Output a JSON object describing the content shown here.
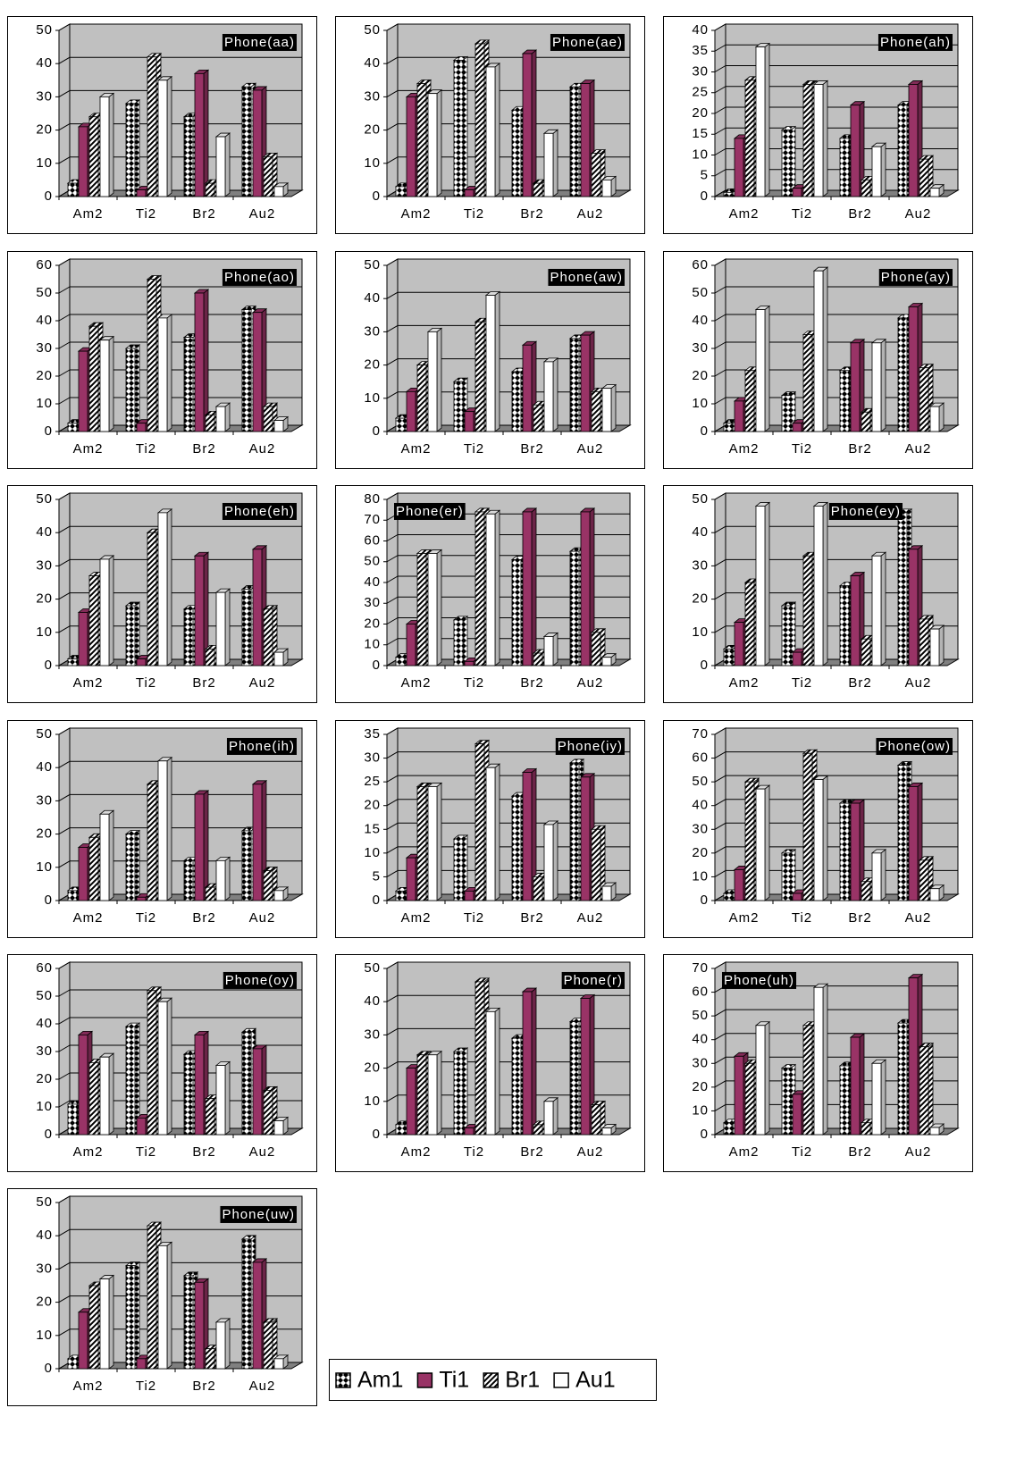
{
  "chart_data": [
    {
      "type": "bar3d",
      "title": "Phone(aa)",
      "categories": [
        "Am2",
        "Ti2",
        "Br2",
        "Au2"
      ],
      "ylim": [
        0,
        50
      ],
      "yticks": [
        0,
        10,
        20,
        30,
        40,
        50
      ],
      "grid": true,
      "series": [
        {
          "name": "Am1",
          "color": "#000000",
          "values": [
            4,
            28,
            24,
            33
          ]
        },
        {
          "name": "Ti1",
          "color": "#993366",
          "values": [
            21,
            2,
            37,
            32
          ]
        },
        {
          "name": "Br1",
          "color": "#000000",
          "values": [
            24,
            42,
            4,
            12
          ]
        },
        {
          "name": "Au1",
          "color": "#ffffff",
          "values": [
            30,
            35,
            18,
            3
          ]
        }
      ]
    },
    {
      "type": "bar3d",
      "title": "Phone(ae)",
      "categories": [
        "Am2",
        "Ti2",
        "Br2",
        "Au2"
      ],
      "ylim": [
        0,
        50
      ],
      "yticks": [
        0,
        10,
        20,
        30,
        40,
        50
      ],
      "grid": true,
      "series": [
        {
          "name": "Am1",
          "color": "#000000",
          "values": [
            3,
            41,
            26,
            33
          ]
        },
        {
          "name": "Ti1",
          "color": "#993366",
          "values": [
            30,
            2,
            43,
            34
          ]
        },
        {
          "name": "Br1",
          "color": "#000000",
          "values": [
            34,
            46,
            4,
            13
          ]
        },
        {
          "name": "Au1",
          "color": "#ffffff",
          "values": [
            31,
            39,
            19,
            5
          ]
        }
      ]
    },
    {
      "type": "bar3d",
      "title": "Phone(ah)",
      "categories": [
        "Am2",
        "Ti2",
        "Br2",
        "Au2"
      ],
      "ylim": [
        0,
        40
      ],
      "yticks": [
        0,
        5,
        10,
        15,
        20,
        25,
        30,
        35,
        40
      ],
      "grid": true,
      "series": [
        {
          "name": "Am1",
          "color": "#000000",
          "values": [
            1,
            16,
            14,
            22
          ]
        },
        {
          "name": "Ti1",
          "color": "#993366",
          "values": [
            14,
            2,
            22,
            27
          ]
        },
        {
          "name": "Br1",
          "color": "#000000",
          "values": [
            28,
            27,
            4,
            9
          ]
        },
        {
          "name": "Au1",
          "color": "#ffffff",
          "values": [
            36,
            27,
            12,
            2
          ]
        }
      ]
    },
    {
      "type": "bar3d",
      "title": "Phone(ao)",
      "categories": [
        "Am2",
        "Ti2",
        "Br2",
        "Au2"
      ],
      "ylim": [
        0,
        60
      ],
      "yticks": [
        0,
        10,
        20,
        30,
        40,
        50,
        60
      ],
      "grid": true,
      "series": [
        {
          "name": "Am1",
          "color": "#000000",
          "values": [
            3,
            30,
            34,
            44
          ]
        },
        {
          "name": "Ti1",
          "color": "#993366",
          "values": [
            29,
            3,
            50,
            43
          ]
        },
        {
          "name": "Br1",
          "color": "#000000",
          "values": [
            38,
            55,
            6,
            9
          ]
        },
        {
          "name": "Au1",
          "color": "#ffffff",
          "values": [
            33,
            41,
            9,
            4
          ]
        }
      ]
    },
    {
      "type": "bar3d",
      "title": "Phone(aw)",
      "categories": [
        "Am2",
        "Ti2",
        "Br2",
        "Au2"
      ],
      "ylim": [
        0,
        50
      ],
      "yticks": [
        0,
        10,
        20,
        30,
        40,
        50
      ],
      "grid": true,
      "series": [
        {
          "name": "Am1",
          "color": "#000000",
          "values": [
            4,
            15,
            18,
            28
          ]
        },
        {
          "name": "Ti1",
          "color": "#993366",
          "values": [
            12,
            6,
            26,
            29
          ]
        },
        {
          "name": "Br1",
          "color": "#000000",
          "values": [
            20,
            33,
            8,
            12
          ]
        },
        {
          "name": "Au1",
          "color": "#ffffff",
          "values": [
            30,
            41,
            21,
            13
          ]
        }
      ]
    },
    {
      "type": "bar3d",
      "title": "Phone(ay)",
      "categories": [
        "Am2",
        "Ti2",
        "Br2",
        "Au2"
      ],
      "ylim": [
        0,
        60
      ],
      "yticks": [
        0,
        10,
        20,
        30,
        40,
        50,
        60
      ],
      "grid": true,
      "series": [
        {
          "name": "Am1",
          "color": "#000000",
          "values": [
            3,
            13,
            22,
            41
          ]
        },
        {
          "name": "Ti1",
          "color": "#993366",
          "values": [
            11,
            3,
            32,
            45
          ]
        },
        {
          "name": "Br1",
          "color": "#000000",
          "values": [
            22,
            35,
            7,
            23
          ]
        },
        {
          "name": "Au1",
          "color": "#ffffff",
          "values": [
            44,
            58,
            32,
            9
          ]
        }
      ]
    },
    {
      "type": "bar3d",
      "title": "Phone(eh)",
      "categories": [
        "Am2",
        "Ti2",
        "Br2",
        "Au2"
      ],
      "ylim": [
        0,
        50
      ],
      "yticks": [
        0,
        10,
        20,
        30,
        40,
        50
      ],
      "grid": true,
      "series": [
        {
          "name": "Am1",
          "color": "#000000",
          "values": [
            2,
            18,
            17,
            23
          ]
        },
        {
          "name": "Ti1",
          "color": "#993366",
          "values": [
            16,
            2,
            33,
            35
          ]
        },
        {
          "name": "Br1",
          "color": "#000000",
          "values": [
            27,
            40,
            5,
            17
          ]
        },
        {
          "name": "Au1",
          "color": "#ffffff",
          "values": [
            32,
            46,
            22,
            4
          ]
        }
      ]
    },
    {
      "type": "bar3d",
      "title": "Phone(er)",
      "categories": [
        "Am2",
        "Ti2",
        "Br2",
        "Au2"
      ],
      "ylim": [
        0,
        80
      ],
      "yticks": [
        0,
        10,
        20,
        30,
        40,
        50,
        60,
        70,
        80
      ],
      "grid": true,
      "series": [
        {
          "name": "Am1",
          "color": "#000000",
          "values": [
            4,
            22,
            51,
            55
          ]
        },
        {
          "name": "Ti1",
          "color": "#993366",
          "values": [
            20,
            2,
            74,
            74
          ]
        },
        {
          "name": "Br1",
          "color": "#000000",
          "values": [
            54,
            74,
            6,
            16
          ]
        },
        {
          "name": "Au1",
          "color": "#ffffff",
          "values": [
            54,
            73,
            14,
            4
          ]
        }
      ]
    },
    {
      "type": "bar3d",
      "title": "Phone(ey)",
      "categories": [
        "Am2",
        "Ti2",
        "Br2",
        "Au2"
      ],
      "ylim": [
        0,
        50
      ],
      "yticks": [
        0,
        10,
        20,
        30,
        40,
        50
      ],
      "grid": true,
      "series": [
        {
          "name": "Am1",
          "color": "#000000",
          "values": [
            5,
            18,
            24,
            46
          ]
        },
        {
          "name": "Ti1",
          "color": "#993366",
          "values": [
            13,
            4,
            27,
            35
          ]
        },
        {
          "name": "Br1",
          "color": "#000000",
          "values": [
            25,
            33,
            8,
            14
          ]
        },
        {
          "name": "Au1",
          "color": "#ffffff",
          "values": [
            48,
            48,
            33,
            11
          ]
        }
      ]
    },
    {
      "type": "bar3d",
      "title": "Phone(ih)",
      "categories": [
        "Am2",
        "Ti2",
        "Br2",
        "Au2"
      ],
      "ylim": [
        0,
        50
      ],
      "yticks": [
        0,
        10,
        20,
        30,
        40,
        50
      ],
      "grid": true,
      "series": [
        {
          "name": "Am1",
          "color": "#000000",
          "values": [
            3,
            20,
            12,
            21
          ]
        },
        {
          "name": "Ti1",
          "color": "#993366",
          "values": [
            16,
            1,
            32,
            35
          ]
        },
        {
          "name": "Br1",
          "color": "#000000",
          "values": [
            19,
            35,
            4,
            9
          ]
        },
        {
          "name": "Au1",
          "color": "#ffffff",
          "values": [
            26,
            42,
            12,
            3
          ]
        }
      ]
    },
    {
      "type": "bar3d",
      "title": "Phone(iy)",
      "categories": [
        "Am2",
        "Ti2",
        "Br2",
        "Au2"
      ],
      "ylim": [
        0,
        35
      ],
      "yticks": [
        0,
        5,
        10,
        15,
        20,
        25,
        30,
        35
      ],
      "grid": true,
      "series": [
        {
          "name": "Am1",
          "color": "#000000",
          "values": [
            2,
            13,
            22,
            29
          ]
        },
        {
          "name": "Ti1",
          "color": "#993366",
          "values": [
            9,
            2,
            27,
            26
          ]
        },
        {
          "name": "Br1",
          "color": "#000000",
          "values": [
            24,
            33,
            5,
            15
          ]
        },
        {
          "name": "Au1",
          "color": "#ffffff",
          "values": [
            24,
            28,
            16,
            3
          ]
        }
      ]
    },
    {
      "type": "bar3d",
      "title": "Phone(ow)",
      "categories": [
        "Am2",
        "Ti2",
        "Br2",
        "Au2"
      ],
      "ylim": [
        0,
        70
      ],
      "yticks": [
        0,
        10,
        20,
        30,
        40,
        50,
        60,
        70
      ],
      "grid": true,
      "series": [
        {
          "name": "Am1",
          "color": "#000000",
          "values": [
            3,
            20,
            41,
            57
          ]
        },
        {
          "name": "Ti1",
          "color": "#993366",
          "values": [
            13,
            3,
            41,
            48
          ]
        },
        {
          "name": "Br1",
          "color": "#000000",
          "values": [
            50,
            62,
            8,
            17
          ]
        },
        {
          "name": "Au1",
          "color": "#ffffff",
          "values": [
            47,
            51,
            20,
            5
          ]
        }
      ]
    },
    {
      "type": "bar3d",
      "title": "Phone(oy)",
      "categories": [
        "Am2",
        "Ti2",
        "Br2",
        "Au2"
      ],
      "ylim": [
        0,
        60
      ],
      "yticks": [
        0,
        10,
        20,
        30,
        40,
        50,
        60
      ],
      "grid": true,
      "series": [
        {
          "name": "Am1",
          "color": "#000000",
          "values": [
            11,
            39,
            29,
            37
          ]
        },
        {
          "name": "Ti1",
          "color": "#993366",
          "values": [
            36,
            6,
            36,
            31
          ]
        },
        {
          "name": "Br1",
          "color": "#000000",
          "values": [
            26,
            52,
            13,
            16
          ]
        },
        {
          "name": "Au1",
          "color": "#ffffff",
          "values": [
            28,
            48,
            25,
            5
          ]
        }
      ]
    },
    {
      "type": "bar3d",
      "title": "Phone(r)",
      "categories": [
        "Am2",
        "Ti2",
        "Br2",
        "Au2"
      ],
      "ylim": [
        0,
        50
      ],
      "yticks": [
        0,
        10,
        20,
        30,
        40,
        50
      ],
      "grid": true,
      "series": [
        {
          "name": "Am1",
          "color": "#000000",
          "values": [
            3,
            25,
            29,
            34
          ]
        },
        {
          "name": "Ti1",
          "color": "#993366",
          "values": [
            20,
            2,
            43,
            41
          ]
        },
        {
          "name": "Br1",
          "color": "#000000",
          "values": [
            24,
            46,
            3,
            9
          ]
        },
        {
          "name": "Au1",
          "color": "#ffffff",
          "values": [
            24,
            37,
            10,
            2
          ]
        }
      ]
    },
    {
      "type": "bar3d",
      "title": "Phone(uh)",
      "categories": [
        "Am2",
        "Ti2",
        "Br2",
        "Au2"
      ],
      "ylim": [
        0,
        70
      ],
      "yticks": [
        0,
        10,
        20,
        30,
        40,
        50,
        60,
        70
      ],
      "grid": true,
      "series": [
        {
          "name": "Am1",
          "color": "#000000",
          "values": [
            5,
            28,
            29,
            47
          ]
        },
        {
          "name": "Ti1",
          "color": "#993366",
          "values": [
            33,
            17,
            41,
            66
          ]
        },
        {
          "name": "Br1",
          "color": "#000000",
          "values": [
            30,
            46,
            5,
            37
          ]
        },
        {
          "name": "Au1",
          "color": "#ffffff",
          "values": [
            46,
            62,
            30,
            3
          ]
        }
      ]
    },
    {
      "type": "bar3d",
      "title": "Phone(uw)",
      "categories": [
        "Am2",
        "Ti2",
        "Br2",
        "Au2"
      ],
      "ylim": [
        0,
        50
      ],
      "yticks": [
        0,
        10,
        20,
        30,
        40,
        50
      ],
      "grid": true,
      "series": [
        {
          "name": "Am1",
          "color": "#000000",
          "values": [
            3,
            31,
            28,
            39
          ]
        },
        {
          "name": "Ti1",
          "color": "#993366",
          "values": [
            17,
            3,
            26,
            32
          ]
        },
        {
          "name": "Br1",
          "color": "#000000",
          "values": [
            25,
            43,
            6,
            14
          ]
        },
        {
          "name": "Au1",
          "color": "#ffffff",
          "values": [
            27,
            37,
            14,
            3
          ]
        }
      ]
    }
  ]
}
